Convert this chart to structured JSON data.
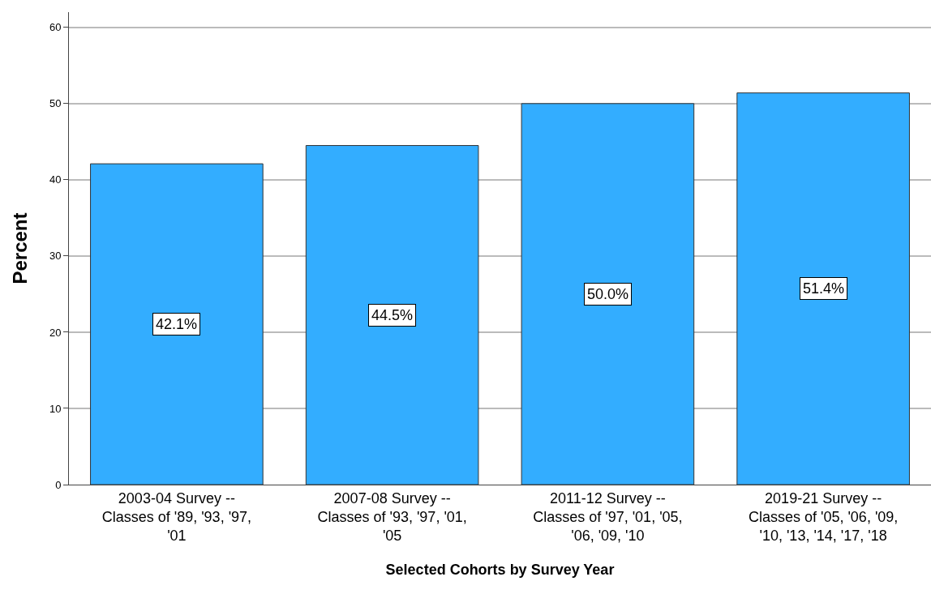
{
  "chart_data": {
    "type": "bar",
    "xlabel": "Selected Cohorts by Survey Year",
    "ylabel": "Percent",
    "categories": [
      "2003-04 Survey --\nClasses of '89, '93, '97,\n'01",
      "2007-08 Survey --\nClasses of '93, '97, '01,\n'05",
      "2011-12 Survey --\nClasses of '97, '01, '05,\n'06, '09, '10",
      "2019-21 Survey --\nClasses of '05, '06, '09,\n'10, '13, '14, '17, '18"
    ],
    "values": [
      42.1,
      44.5,
      50.0,
      51.4
    ],
    "value_labels": [
      "42.1%",
      "44.5%",
      "50.0%",
      "51.4%"
    ],
    "color": "#33adff",
    "ylim": [
      0,
      62
    ],
    "yticks": [
      0,
      10,
      20,
      30,
      40,
      50,
      60
    ],
    "grid": "y"
  }
}
